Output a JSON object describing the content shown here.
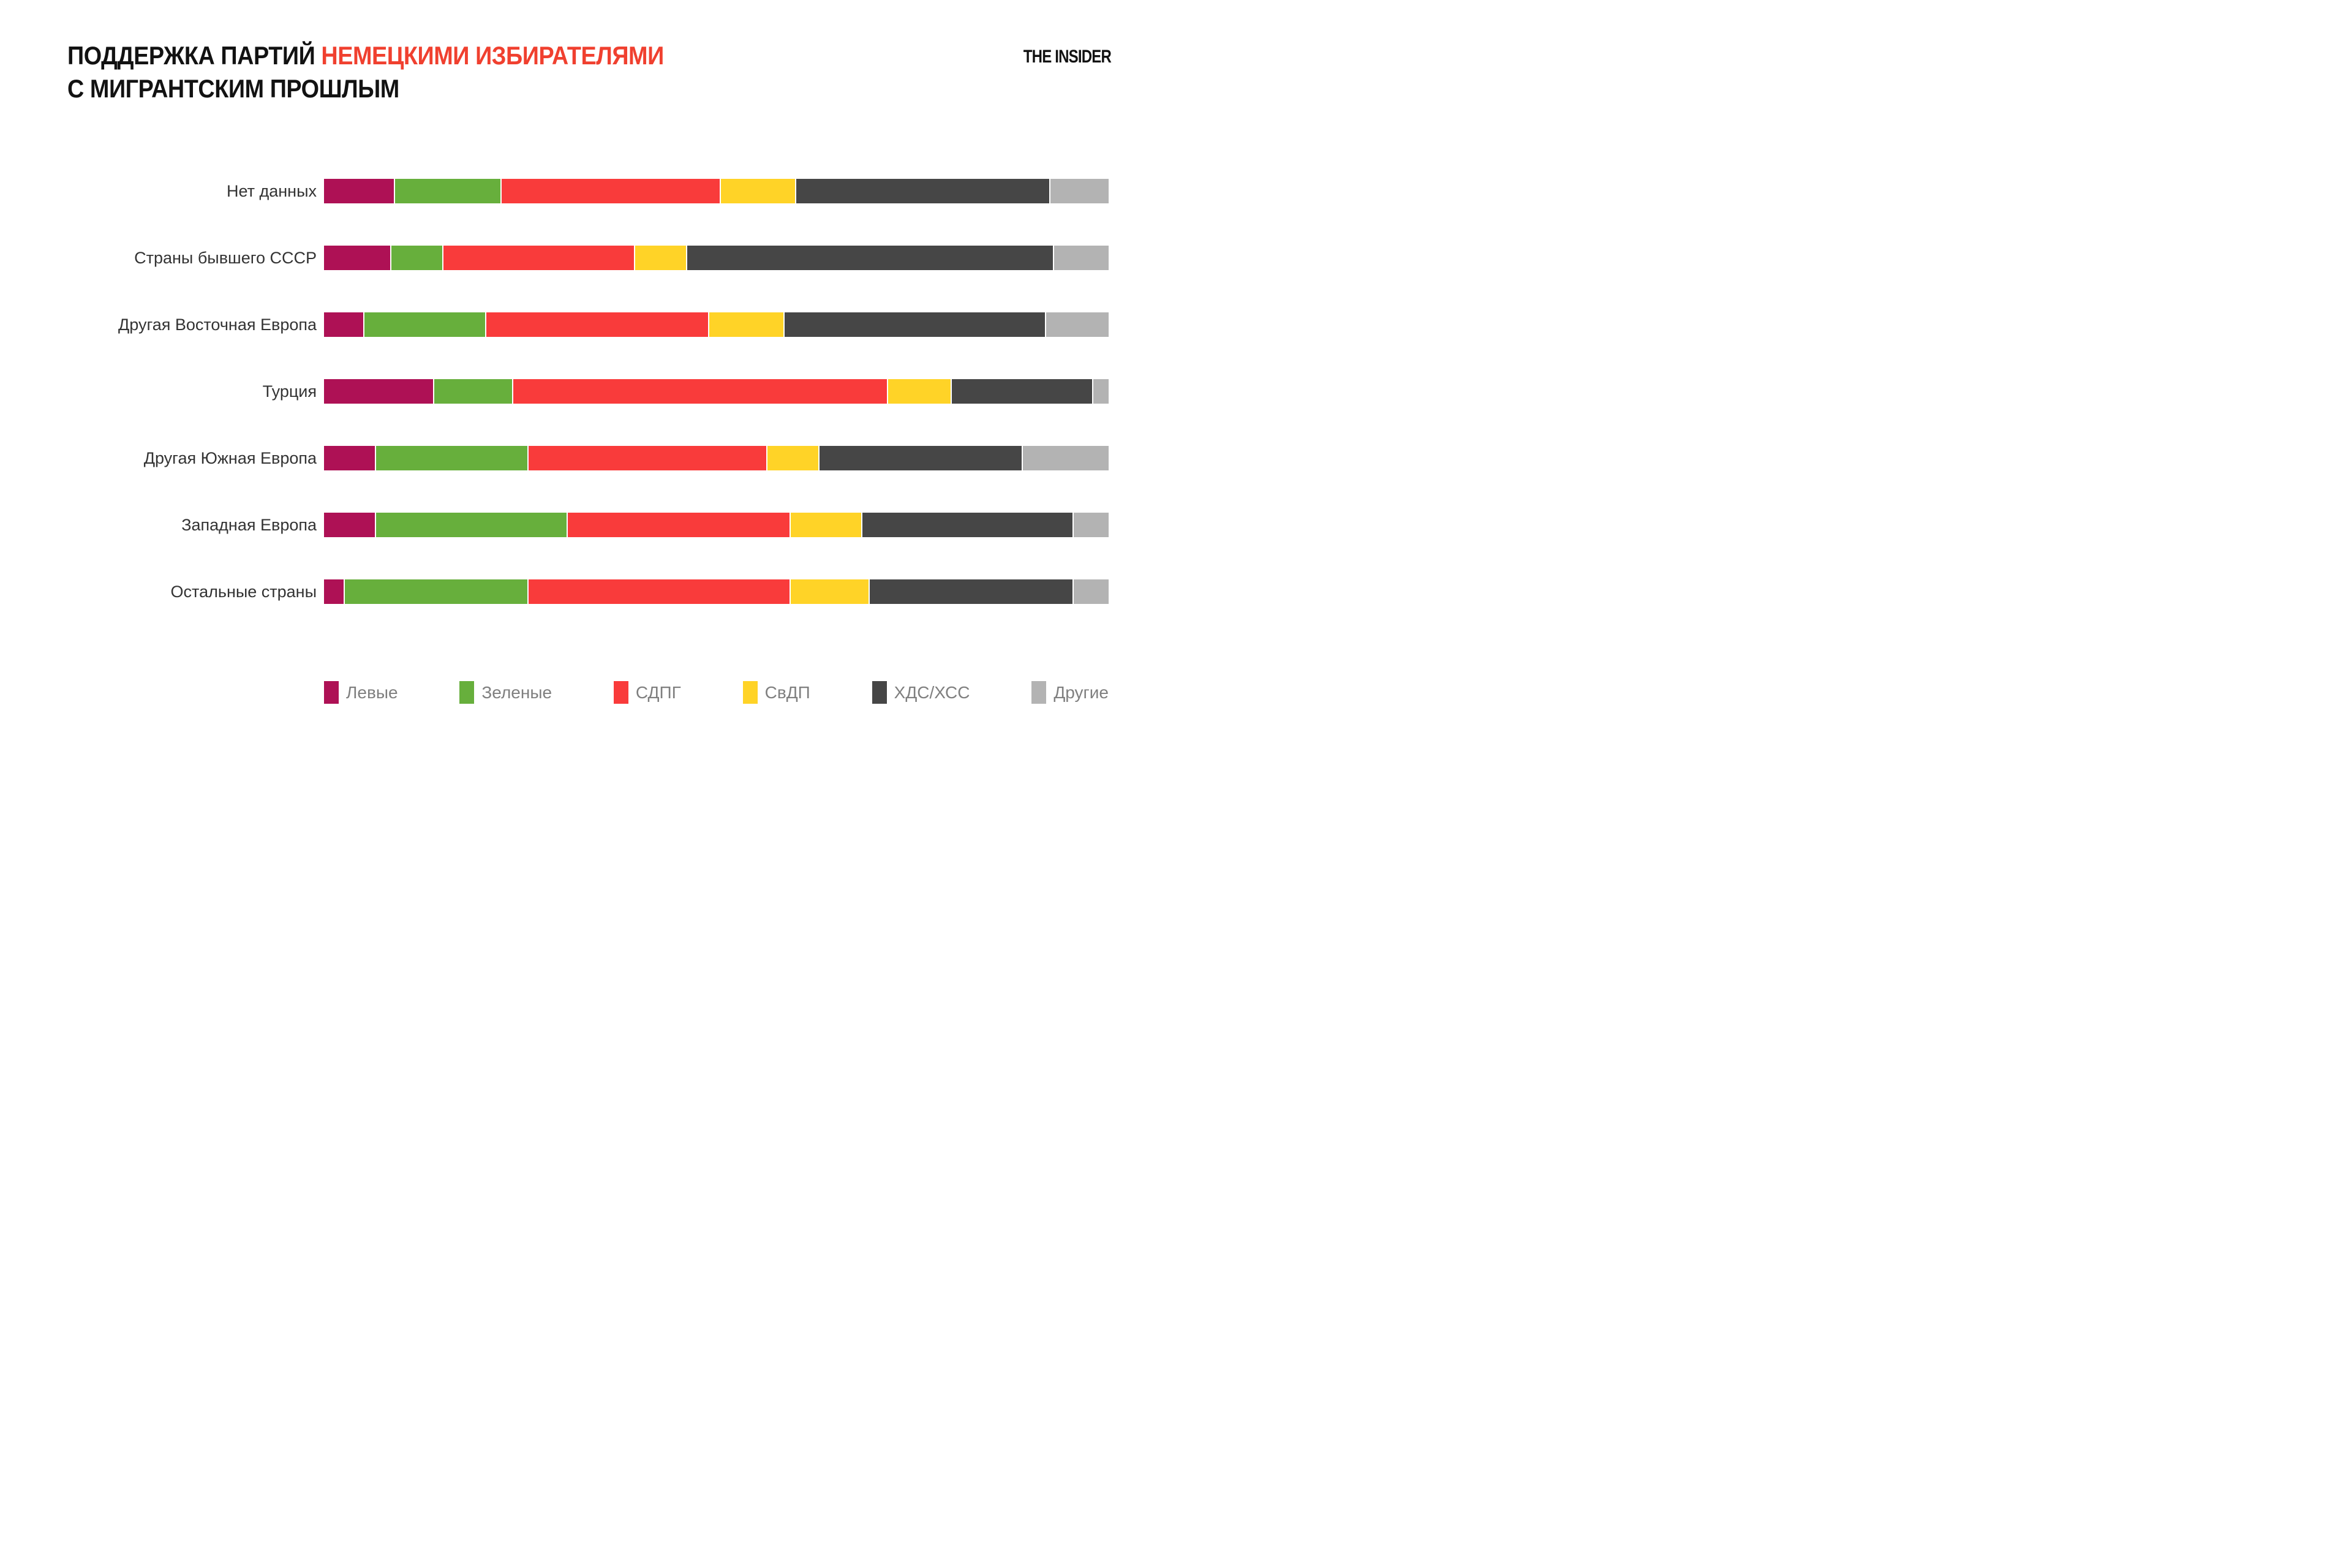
{
  "header": {
    "title_black": "ПОДДЕРЖКА ПАРТИЙ ",
    "title_red": "НЕМЕЦКИМИ ИЗБИРАТЕЛЯМИ",
    "title_line2": "С МИГРАНТСКИМ ПРОШЛЫМ",
    "logo": "THE INSIDER"
  },
  "colors": {
    "title_accent": "#F0402F",
    "label_text": "#333333",
    "legend_text": "#7F7F7F",
    "background": "#FFFFFF"
  },
  "chart_data": {
    "type": "bar",
    "orientation": "horizontal-stacked",
    "unit": "percent",
    "title": "ПОДДЕРЖКА ПАРТИЙ НЕМЕЦКИМИ ИЗБИРАТЕЛЯМИ С МИГРАНТСКИМ ПРОШЛЫМ",
    "xlabel": "",
    "ylabel": "",
    "xlim": [
      0,
      100
    ],
    "grid": false,
    "legend_position": "bottom",
    "categories": [
      "Нет данных",
      "Страны бывшего СССР",
      "Другая Восточная Европа",
      "Турция",
      "Другая Южная Европа",
      "Западная Европа",
      "Остальные страны"
    ],
    "series": [
      {
        "name": "Левые",
        "color": "#AE1155",
        "values": [
          9,
          8.5,
          5,
          14,
          6.5,
          6.5,
          2.5
        ]
      },
      {
        "name": "Зеленые",
        "color": "#67AF3C",
        "values": [
          13.5,
          6.5,
          15.5,
          10,
          19.5,
          24.5,
          23.5
        ]
      },
      {
        "name": "СДПГ",
        "color": "#F93B3B",
        "values": [
          28,
          24.5,
          28.5,
          48,
          30.5,
          28.5,
          33.5
        ]
      },
      {
        "name": "СвДП",
        "color": "#FFD327",
        "values": [
          9.5,
          6.5,
          9.5,
          8,
          6.5,
          9,
          10
        ]
      },
      {
        "name": "ХДС/ХСС",
        "color": "#464646",
        "values": [
          32.5,
          47,
          33.5,
          18,
          26,
          27,
          26
        ]
      },
      {
        "name": "Другие",
        "color": "#B3B3B3",
        "values": [
          7.5,
          7,
          8,
          2,
          11,
          4.5,
          4.5
        ]
      }
    ]
  }
}
